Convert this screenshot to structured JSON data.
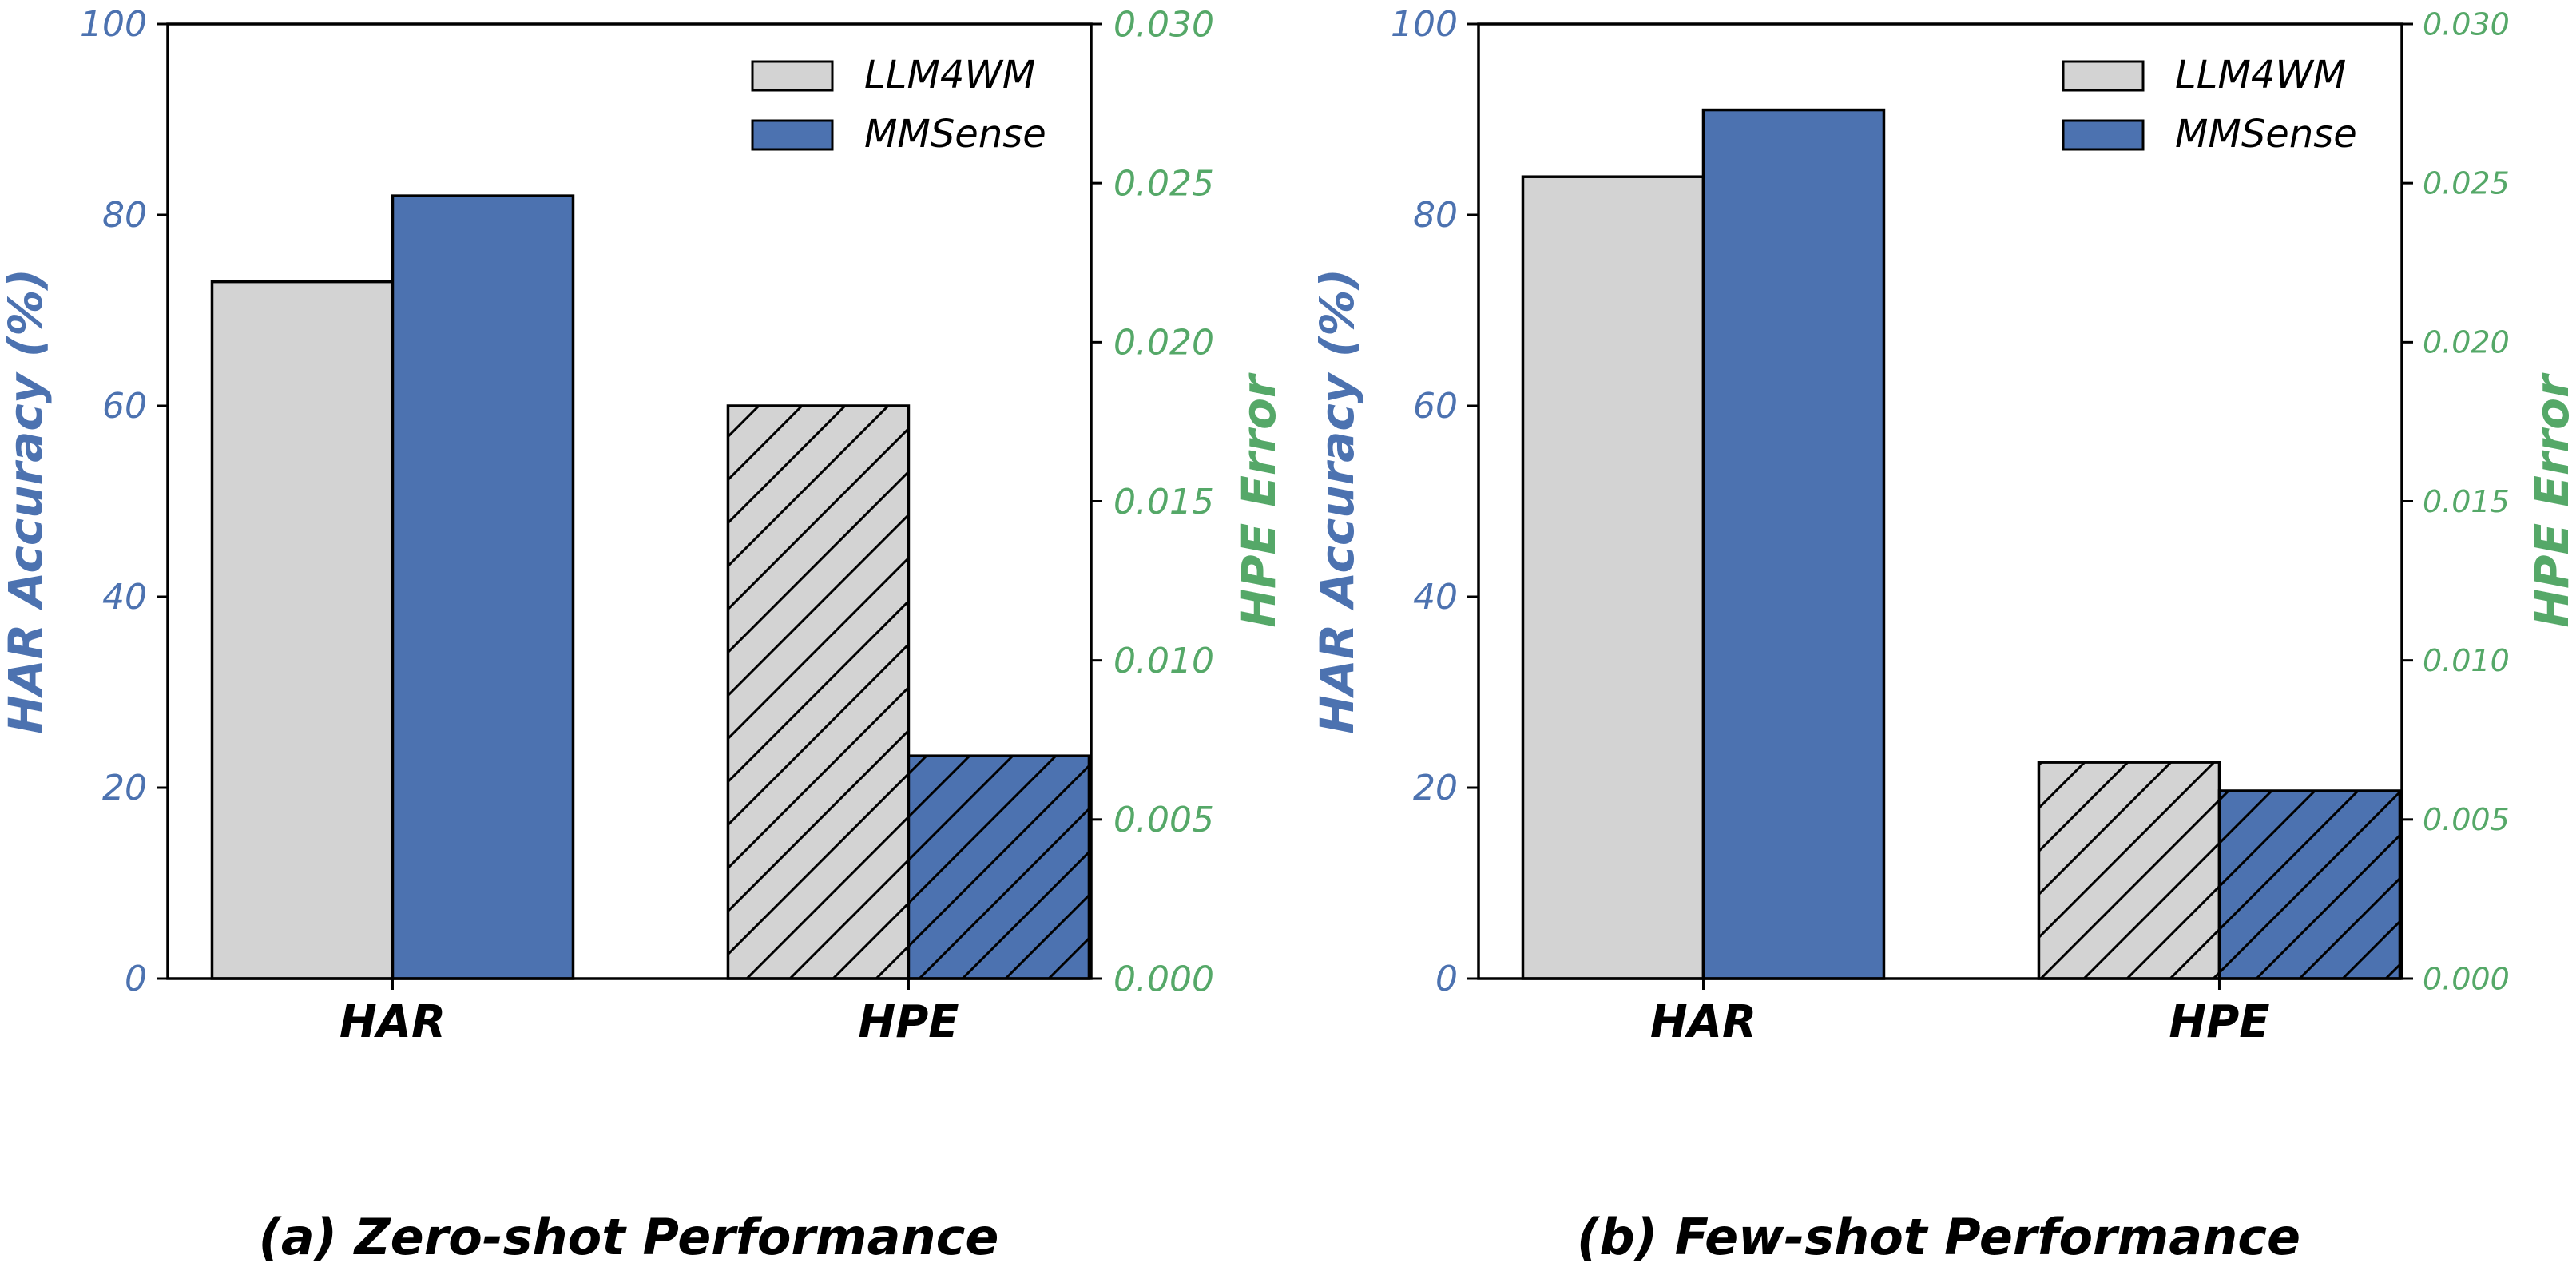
{
  "colors": {
    "llm4wm": "#d3d3d3",
    "mmsense": "#4c72b0",
    "left_axis": "#4c72b0",
    "right_axis": "#55a868",
    "edge": "#000000"
  },
  "chart_data": [
    {
      "type": "bar",
      "caption": "(a) Zero-shot Performance",
      "categories": [
        "HAR",
        "HPE"
      ],
      "ylabel_left": "HAR Accuracy (%)",
      "ylabel_right": "HPE Error",
      "ylim_left": [
        0,
        100
      ],
      "ylim_right": [
        0,
        0.03
      ],
      "yticks_left": [
        "0",
        "20",
        "40",
        "60",
        "80",
        "100"
      ],
      "yticks_right": [
        "0.000",
        "0.005",
        "0.010",
        "0.015",
        "0.020",
        "0.025",
        "0.030"
      ],
      "legend_position": "upper-right",
      "series": [
        {
          "name": "LLM4WM",
          "har_accuracy": 73.0,
          "hpe_error": 0.018
        },
        {
          "name": "MMSense",
          "har_accuracy": 82.0,
          "hpe_error": 0.007
        }
      ]
    },
    {
      "type": "bar",
      "caption": "(b) Few-shot Performance",
      "categories": [
        "HAR",
        "HPE"
      ],
      "ylabel_left": "HAR Accuracy (%)",
      "ylabel_right": "HPE Error",
      "ylim_left": [
        0,
        100
      ],
      "ylim_right": [
        0,
        0.03
      ],
      "yticks_left": [
        "0",
        "20",
        "40",
        "60",
        "80",
        "100"
      ],
      "yticks_right": [
        "0.000",
        "0.005",
        "0.010",
        "0.015",
        "0.020",
        "0.025",
        "0.030"
      ],
      "legend_position": "upper-right",
      "series": [
        {
          "name": "LLM4WM",
          "har_accuracy": 84.0,
          "hpe_error": 0.0068
        },
        {
          "name": "MMSense",
          "har_accuracy": 91.0,
          "hpe_error": 0.0059
        }
      ]
    }
  ]
}
